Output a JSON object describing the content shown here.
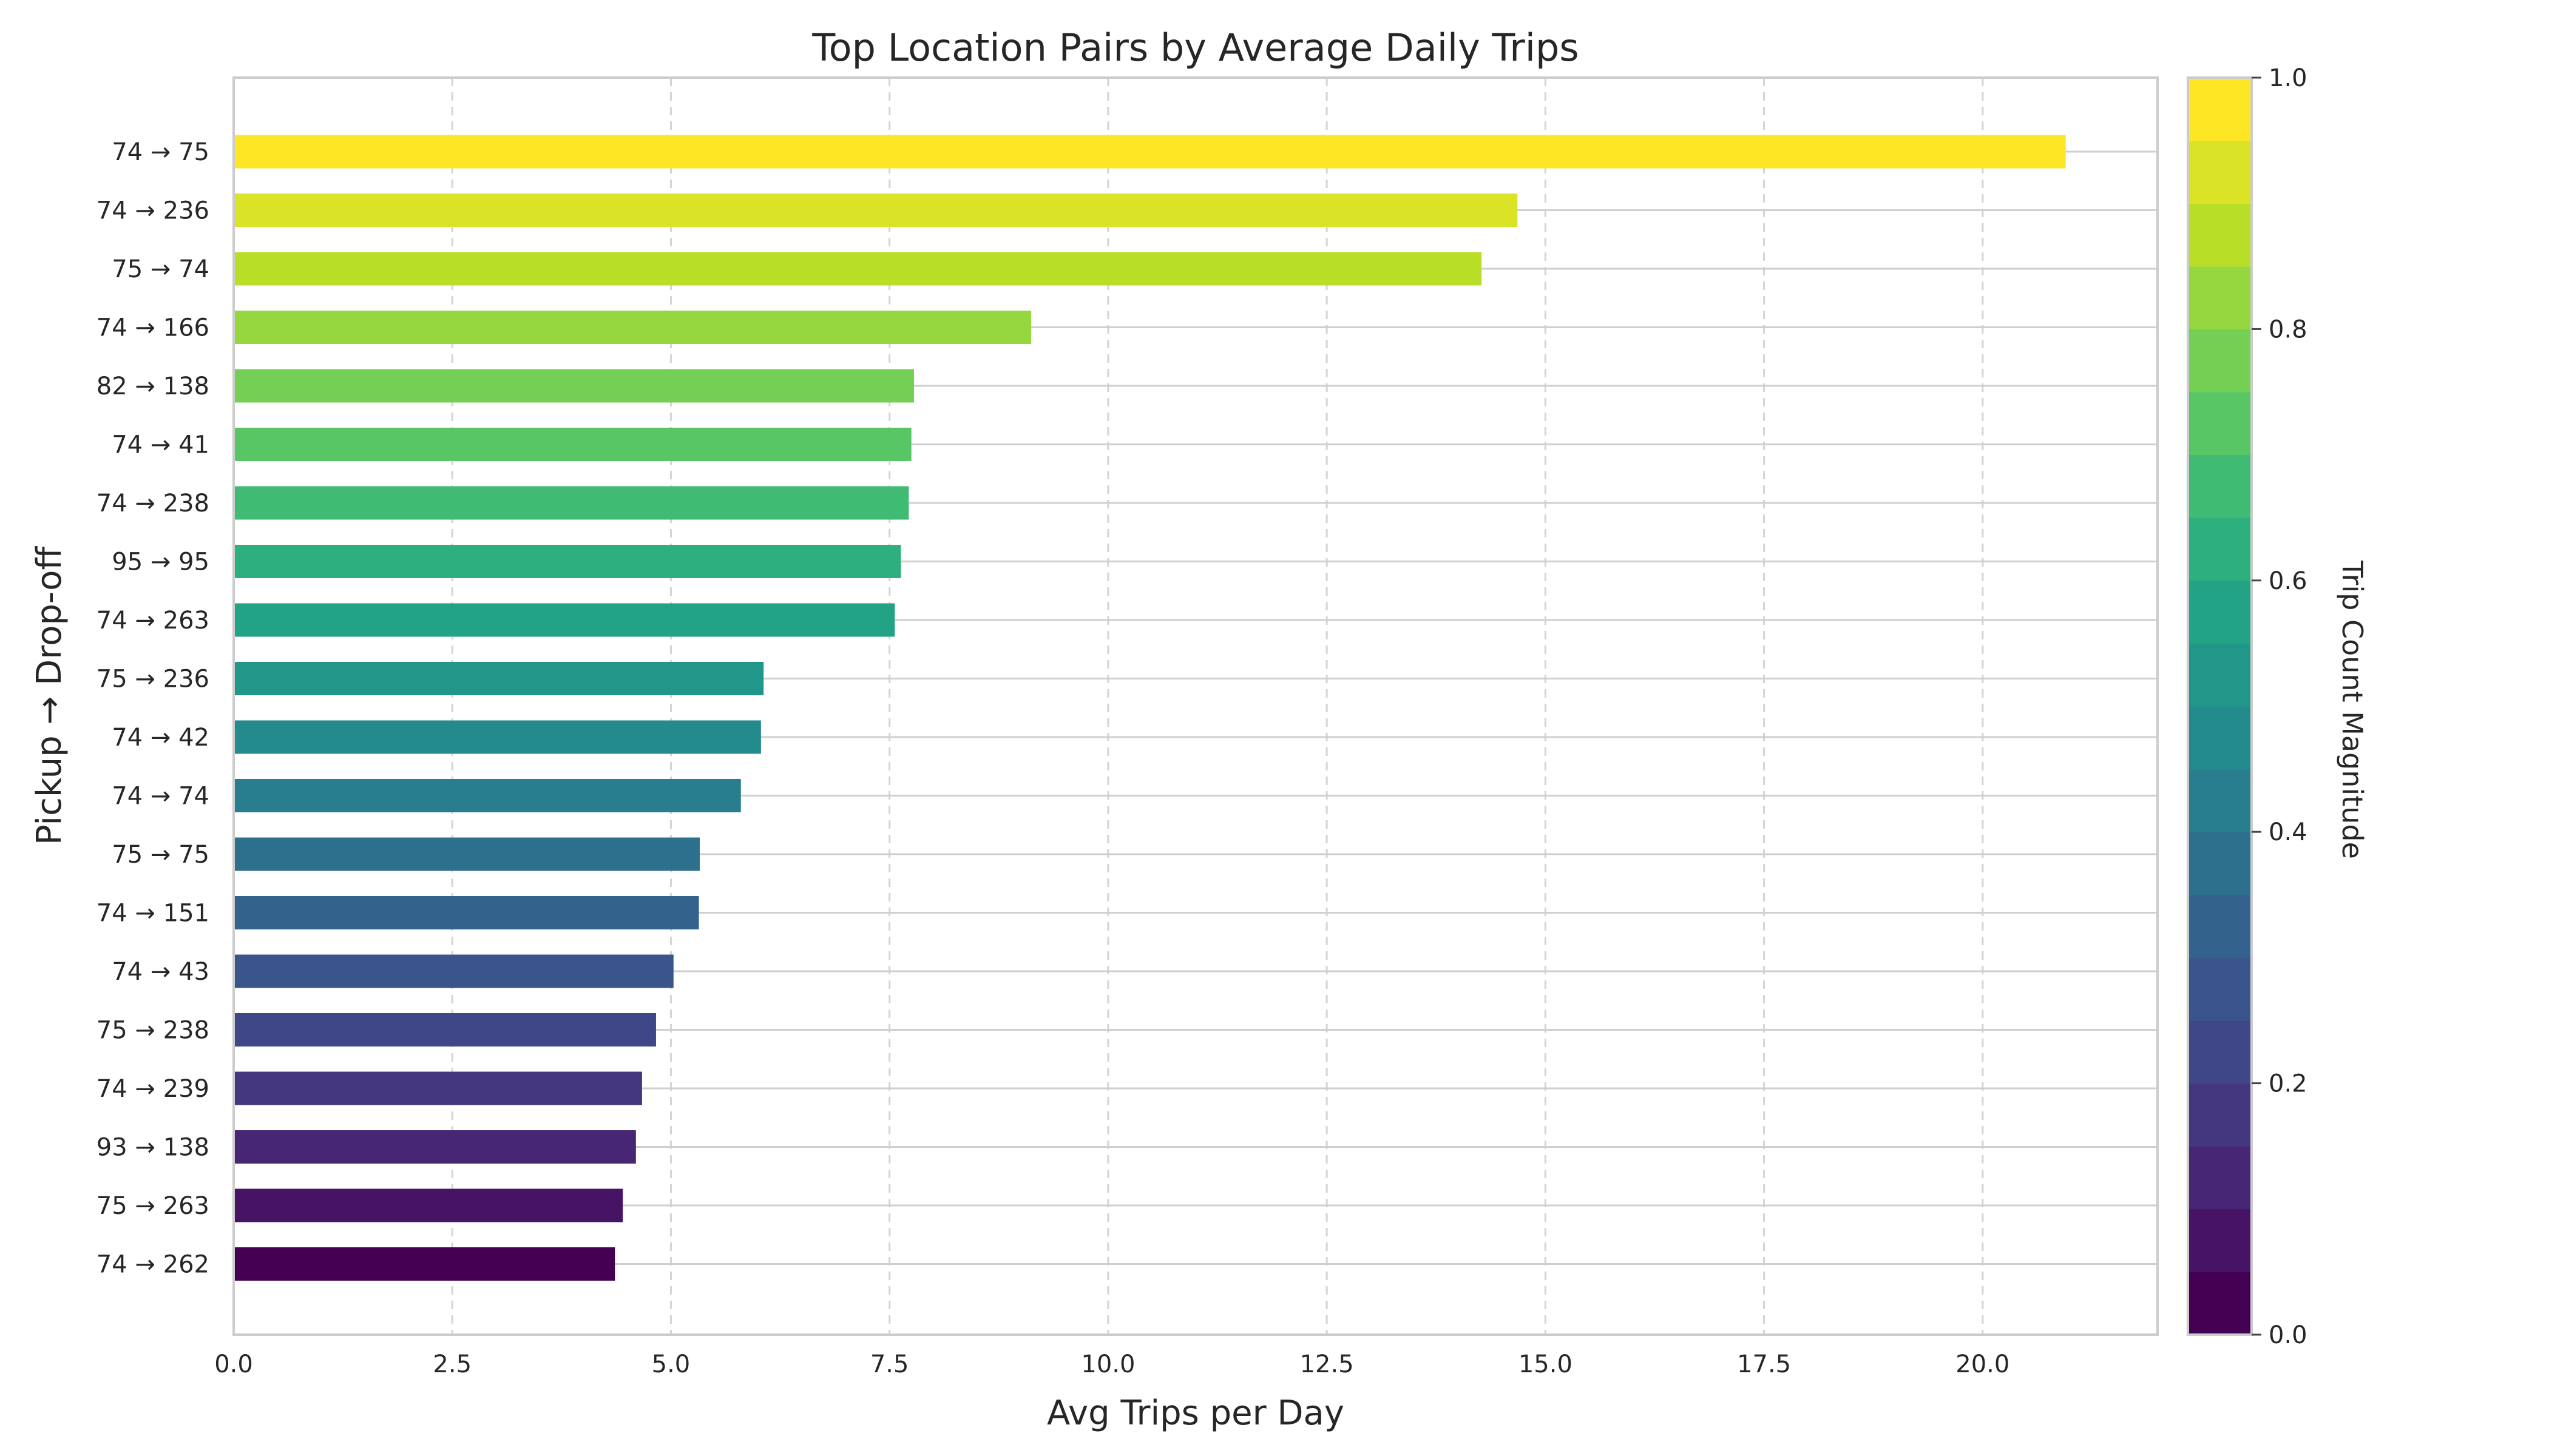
{
  "chart_data": {
    "type": "bar",
    "orientation": "horizontal",
    "title": "Top Location Pairs by Average Daily Trips",
    "xlabel": "Avg Trips per Day",
    "ylabel": "Pickup → Drop-off",
    "xlim": [
      0,
      22
    ],
    "x_ticks": [
      0.0,
      2.5,
      5.0,
      7.5,
      10.0,
      12.5,
      15.0,
      17.5,
      20.0
    ],
    "grid": "x dashed, y solid",
    "categories": [
      "74 → 75",
      "74 → 236",
      "75 → 74",
      "74 → 166",
      "82 → 138",
      "74 → 41",
      "74 → 238",
      "95 → 95",
      "74 → 263",
      "75 → 236",
      "74 → 42",
      "74 → 74",
      "75 → 75",
      "74 → 151",
      "74 → 43",
      "75 → 238",
      "74 → 239",
      "93 → 138",
      "75 → 263",
      "74 → 262"
    ],
    "values": [
      20.95,
      14.68,
      14.27,
      9.12,
      7.78,
      7.75,
      7.72,
      7.63,
      7.56,
      6.06,
      6.03,
      5.8,
      5.33,
      5.32,
      5.03,
      4.83,
      4.67,
      4.6,
      4.45,
      4.36
    ],
    "colorbar": {
      "label": "Trip Count Magnitude",
      "colormap": "viridis",
      "range": [
        0,
        1
      ],
      "ticks": [
        0.0,
        0.2,
        0.4,
        0.6,
        0.8,
        1.0
      ],
      "segments": 20
    }
  }
}
